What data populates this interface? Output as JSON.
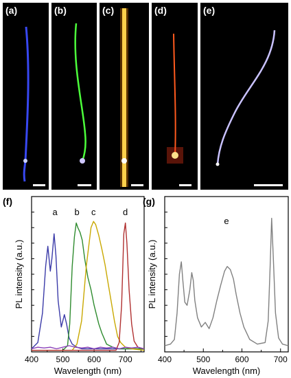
{
  "panels": [
    {
      "label": "(a)",
      "color": "#3b4cff"
    },
    {
      "label": "(b)",
      "color": "#4cff3b"
    },
    {
      "label": "(c)",
      "color": "#ffb000"
    },
    {
      "label": "(d)",
      "color": "#ff5a1e"
    },
    {
      "label": "(e)",
      "color": "#c9c2ff"
    }
  ],
  "chart_data": [
    {
      "type": "line",
      "panel_label": "(f)",
      "xlabel": "Wavelength (nm)",
      "ylabel": "PL intensity (a.u.)",
      "xlim": [
        400,
        760
      ],
      "xticks": [
        400,
        500,
        600,
        700
      ],
      "grid": false,
      "series": [
        {
          "name": "a",
          "color": "#3a3aa8",
          "x": [
            400,
            420,
            435,
            445,
            452,
            460,
            465,
            472,
            478,
            485,
            495,
            505,
            512,
            520,
            530,
            545,
            560,
            600,
            650,
            700,
            760
          ],
          "y": [
            0.02,
            0.06,
            0.25,
            0.55,
            0.68,
            0.52,
            0.6,
            0.76,
            0.62,
            0.33,
            0.16,
            0.24,
            0.18,
            0.09,
            0.05,
            0.03,
            0.02,
            0.02,
            0.02,
            0.02,
            0.02
          ]
        },
        {
          "name": "b",
          "color": "#2e8b2e",
          "x": [
            400,
            500,
            515,
            522,
            530,
            537,
            543,
            548,
            555,
            562,
            570,
            580,
            590,
            600,
            615,
            625,
            640,
            660,
            680,
            700,
            760
          ],
          "y": [
            0.01,
            0.01,
            0.04,
            0.18,
            0.55,
            0.74,
            0.83,
            0.8,
            0.77,
            0.72,
            0.6,
            0.48,
            0.4,
            0.3,
            0.18,
            0.12,
            0.05,
            0.03,
            0.02,
            0.02,
            0.02
          ]
        },
        {
          "name": "c",
          "color": "#c9a800",
          "x": [
            400,
            530,
            545,
            560,
            575,
            590,
            598,
            605,
            615,
            625,
            635,
            645,
            655,
            665,
            675,
            685,
            700,
            720,
            760
          ],
          "y": [
            0.01,
            0.01,
            0.05,
            0.2,
            0.55,
            0.8,
            0.84,
            0.82,
            0.75,
            0.66,
            0.56,
            0.44,
            0.32,
            0.2,
            0.1,
            0.06,
            0.03,
            0.02,
            0.01
          ]
        },
        {
          "name": "d",
          "color": "#b03030",
          "x": [
            400,
            670,
            680,
            688,
            695,
            700,
            705,
            712,
            720,
            728,
            740,
            760
          ],
          "y": [
            0.01,
            0.01,
            0.06,
            0.3,
            0.76,
            0.83,
            0.7,
            0.4,
            0.18,
            0.07,
            0.03,
            0.02
          ]
        },
        {
          "name": "",
          "color": "#8a3fb8",
          "x": [
            400,
            420,
            440,
            460,
            480,
            500,
            520,
            540,
            560,
            580,
            600,
            620,
            640,
            660,
            680,
            700,
            720,
            740,
            760
          ],
          "y": [
            0.02,
            0.03,
            0.025,
            0.03,
            0.02,
            0.03,
            0.04,
            0.03,
            0.025,
            0.03,
            0.02,
            0.03,
            0.025,
            0.03,
            0.02,
            0.03,
            0.025,
            0.03,
            0.02
          ]
        }
      ]
    },
    {
      "type": "line",
      "panel_label": "(g)",
      "annotation": "e",
      "xlabel": "Wavelength (nm)",
      "ylabel": "PL intensity (a.u.)",
      "xlim": [
        400,
        720
      ],
      "xticks": [
        400,
        500,
        600,
        700
      ],
      "grid": false,
      "series": [
        {
          "name": "e",
          "color": "#808080",
          "x": [
            400,
            415,
            425,
            432,
            438,
            443,
            447,
            452,
            458,
            465,
            470,
            474,
            478,
            485,
            495,
            505,
            515,
            525,
            535,
            545,
            555,
            562,
            570,
            578,
            585,
            595,
            605,
            620,
            640,
            660,
            668,
            673,
            677,
            681,
            687,
            695,
            705,
            720
          ],
          "y": [
            0.04,
            0.05,
            0.08,
            0.25,
            0.5,
            0.58,
            0.46,
            0.32,
            0.3,
            0.4,
            0.51,
            0.46,
            0.33,
            0.22,
            0.16,
            0.19,
            0.15,
            0.22,
            0.33,
            0.43,
            0.52,
            0.55,
            0.53,
            0.47,
            0.37,
            0.25,
            0.16,
            0.08,
            0.05,
            0.06,
            0.2,
            0.55,
            0.86,
            0.62,
            0.25,
            0.09,
            0.05,
            0.04
          ]
        }
      ]
    }
  ]
}
